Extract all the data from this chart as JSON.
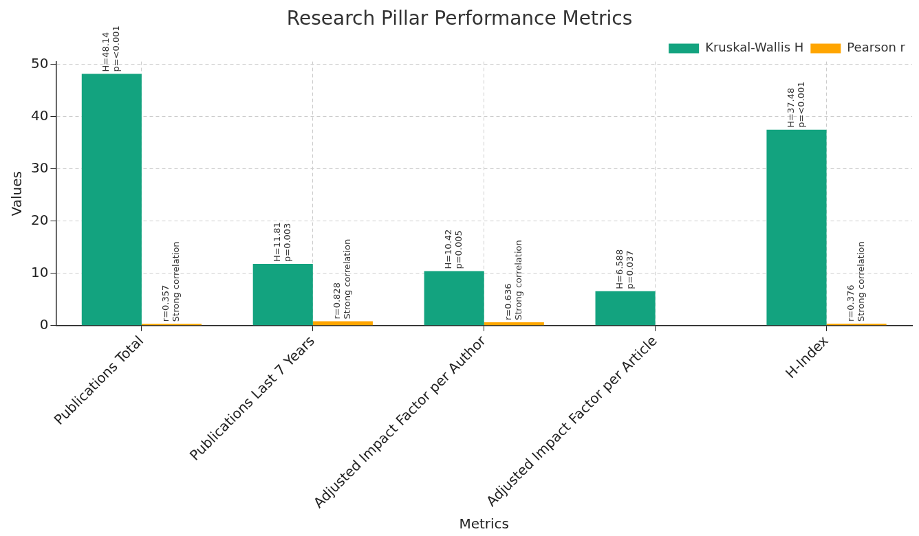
{
  "chart_data": {
    "type": "bar",
    "title": "Research Pillar Performance Metrics",
    "xlabel": "Metrics",
    "ylabel": "Values",
    "categories": [
      "Publications Total",
      "Publications Last 7 Years",
      "Adjusted Impact Factor per Author",
      "Adjusted Impact Factor per Article",
      "H-Index"
    ],
    "series": [
      {
        "name": "Kruskal-Wallis H",
        "color": "#13a37f",
        "values": [
          48.14,
          11.81,
          10.42,
          6.588,
          37.48
        ],
        "value_labels": [
          "H=48.14\np=<0.001",
          "H=11.81\np=0.003",
          "H=10.42\np=0.005",
          "H=6.588\np=0.037",
          "H=37.48\np=<0.001"
        ]
      },
      {
        "name": "Pearson r",
        "color": "#ffa500",
        "values": [
          0.357,
          0.828,
          0.636,
          null,
          0.376
        ],
        "value_labels": [
          "r=0.357\nStrong correlation",
          "r=0.828\nStrong correlation",
          "r=0.636\nStrong correlation",
          null,
          "r=0.376\nStrong correlation"
        ]
      }
    ],
    "ylim": [
      0,
      50.5
    ],
    "yticks": [
      0,
      10,
      20,
      30,
      40,
      50
    ],
    "grid": true,
    "legend": "top right"
  }
}
